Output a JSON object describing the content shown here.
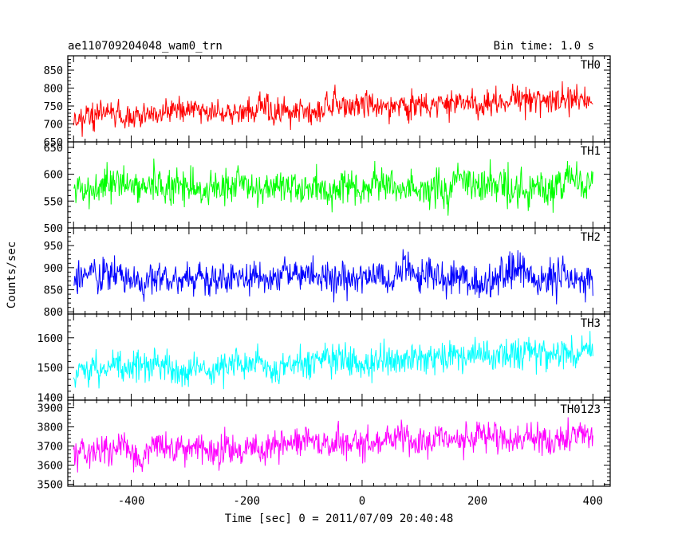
{
  "header": {
    "left": "ae110709204048_wam0_trn",
    "right": "Bin time: 1.0 s"
  },
  "chart_data": {
    "type": "line",
    "xlabel": "Time [sec] 0 = 2011/07/09 20:40:48",
    "ylabel": "Counts/sec",
    "xlim": [
      -510,
      430
    ],
    "xticks": [
      -400,
      -200,
      0,
      200,
      400
    ],
    "x_start": -500,
    "x_end": 400,
    "x_step": 1,
    "panels": [
      {
        "name": "TH0",
        "color": "#ff0000",
        "ylim": [
          650,
          890
        ],
        "yticks": [
          650,
          700,
          750,
          800,
          850
        ],
        "trend_start": 718,
        "trend_end": 772,
        "noise": 27,
        "seed": 11
      },
      {
        "name": "TH1",
        "color": "#00ff00",
        "ylim": [
          500,
          660
        ],
        "yticks": [
          500,
          550,
          600,
          650
        ],
        "trend_start": 578,
        "trend_end": 582,
        "noise": 25,
        "seed": 23
      },
      {
        "name": "TH2",
        "color": "#0000ff",
        "ylim": [
          795,
          990
        ],
        "yticks": [
          800,
          850,
          900,
          950
        ],
        "trend_start": 880,
        "trend_end": 880,
        "noise": 30,
        "seed": 37
      },
      {
        "name": "TH3",
        "color": "#00ffff",
        "ylim": [
          1390,
          1680
        ],
        "yticks": [
          1400,
          1500,
          1600
        ],
        "trend_start": 1495,
        "trend_end": 1545,
        "noise": 40,
        "seed": 53
      },
      {
        "name": "TH0123",
        "color": "#ff00ff",
        "ylim": [
          3490,
          3940
        ],
        "yticks": [
          3500,
          3600,
          3700,
          3800,
          3900
        ],
        "trend_start": 3665,
        "trend_end": 3760,
        "noise": 60,
        "seed": 71
      }
    ]
  }
}
